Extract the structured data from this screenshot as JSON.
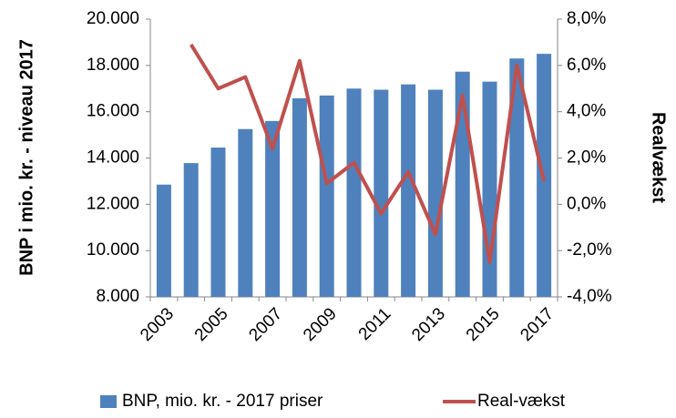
{
  "chart_data": {
    "type": "bar-line",
    "y_label": "BNP i mio. kr. - niveau 2017",
    "y2_label": "Realvækst",
    "categories": [
      "2003",
      null,
      "2005",
      null,
      "2007",
      null,
      "2009",
      null,
      "2011",
      null,
      "2013",
      null,
      "2015",
      null,
      "2017"
    ],
    "series": [
      {
        "name": "BNP, mio. kr. - 2017 priser",
        "type": "bar",
        "color": "#4f81bd",
        "values": [
          12850,
          13780,
          14450,
          15250,
          15600,
          16580,
          16700,
          17000,
          16950,
          17180,
          16950,
          17730,
          17300,
          18300,
          18500
        ]
      },
      {
        "name": "Real-vækst",
        "type": "line",
        "axis": "y2",
        "color": "#c0504d",
        "values": [
          null,
          6.9,
          5.0,
          5.5,
          2.4,
          6.2,
          0.9,
          1.8,
          -0.4,
          1.4,
          -1.3,
          4.7,
          -2.5,
          6.0,
          1.0
        ]
      }
    ],
    "ylim": [
      8000,
      20000
    ],
    "yticks": [
      {
        "value": 8000,
        "label": "8.000"
      },
      {
        "value": 10000,
        "label": "10.000"
      },
      {
        "value": 12000,
        "label": "12.000"
      },
      {
        "value": 14000,
        "label": "14.000"
      },
      {
        "value": 16000,
        "label": "16.000"
      },
      {
        "value": 18000,
        "label": "18.000"
      },
      {
        "value": 20000,
        "label": "20.000"
      }
    ],
    "y2lim": [
      -4,
      8
    ],
    "y2ticks": [
      {
        "value": -4,
        "label": "-4,0%"
      },
      {
        "value": -2,
        "label": "-2,0%"
      },
      {
        "value": 0,
        "label": "0,0%"
      },
      {
        "value": 2,
        "label": "2,0%"
      },
      {
        "value": 4,
        "label": "4,0%"
      },
      {
        "value": 6,
        "label": "6,0%"
      },
      {
        "value": 8,
        "label": "8,0%"
      }
    ],
    "legend": "bottom"
  }
}
